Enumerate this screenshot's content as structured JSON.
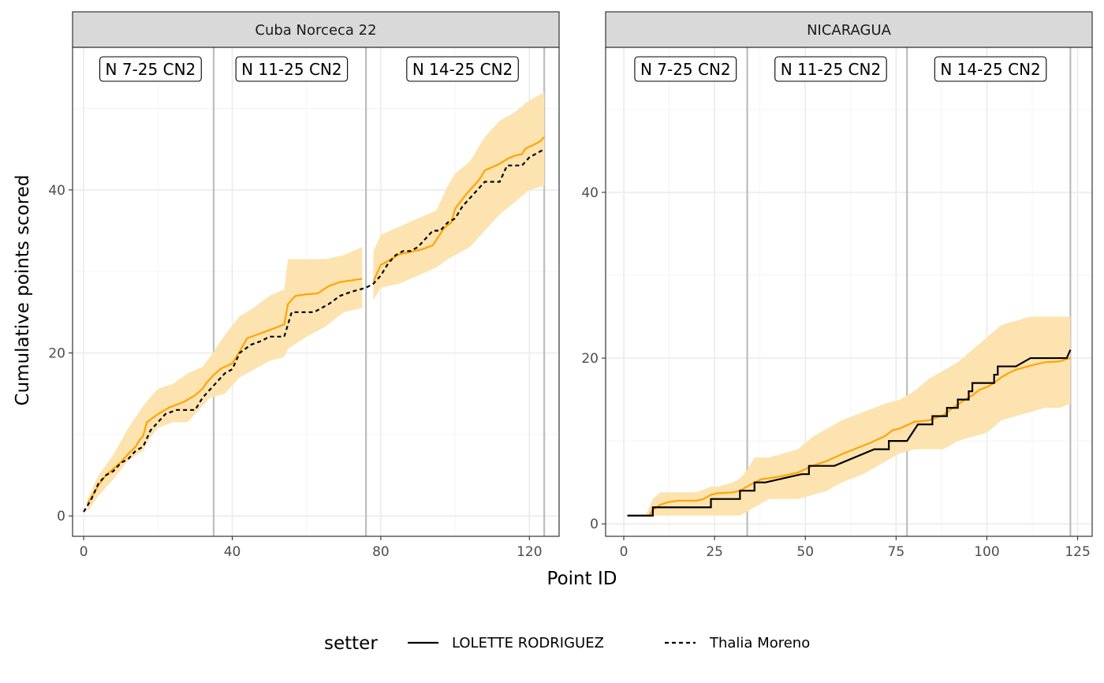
{
  "chart_data": {
    "type": "line",
    "xlabel": "Point ID",
    "ylabel": "Cumulative points scored",
    "legend": {
      "title": "setter",
      "position": "bottom",
      "entries": [
        {
          "label": "LOLETTE RODRIGUEZ",
          "linetype": "solid"
        },
        {
          "label": "Thalia Moreno",
          "linetype": "dashed"
        }
      ]
    },
    "colors": {
      "prediction": "#ffa500",
      "ribbon": "#fde3b0",
      "observed": "#000000"
    },
    "panels": [
      {
        "strip": "Cuba Norceca 22",
        "xlim": [
          -3,
          128
        ],
        "ylim": [
          -2.5,
          57.5
        ],
        "x_ticks": [
          0,
          40,
          80,
          120
        ],
        "y_ticks": [
          0,
          20,
          40
        ],
        "set_boundaries": [
          35,
          76,
          124
        ],
        "set_labels": [
          {
            "text": "N 7-25 CN2",
            "x": 18
          },
          {
            "text": "N 11-25 CN2",
            "x": 56
          },
          {
            "text": "N 14-25 CN2",
            "x": 102
          }
        ],
        "prediction": [
          {
            "x": [
              1,
              2,
              3,
              4,
              6,
              8,
              10,
              12,
              14,
              15,
              16,
              17,
              20,
              23,
              27,
              30,
              32,
              33,
              35,
              37,
              40,
              42,
              44,
              47,
              50,
              54,
              55,
              57,
              60,
              63,
              66,
              69,
              72,
              75
            ],
            "y": [
              1.5,
              2.2,
              3,
              3.8,
              5,
              5.8,
              6.6,
              7.6,
              8.5,
              9.3,
              9.8,
              11.5,
              12.5,
              13.3,
              14,
              14.8,
              15.6,
              16.3,
              17.3,
              18.1,
              18.7,
              20.2,
              21.8,
              22.3,
              22.8,
              23.5,
              26,
              27,
              27.2,
              27.3,
              28.2,
              28.7,
              28.9,
              29.1
            ]
          },
          {
            "x": [
              78,
              80,
              82,
              85,
              88,
              91,
              94,
              97,
              99,
              100,
              102,
              104,
              106,
              107,
              108,
              110,
              112,
              114,
              116,
              118,
              119,
              121,
              123,
              124
            ],
            "y": [
              28.8,
              30.8,
              31.3,
              32.1,
              32.4,
              32.7,
              33.2,
              35.3,
              36,
              37.7,
              38.9,
              40,
              41,
              41.6,
              42.4,
              42.8,
              43.2,
              43.8,
              44.2,
              44.4,
              45.1,
              45.5,
              46,
              46.5
            ]
          }
        ],
        "ribbon": [
          {
            "x": [
              1,
              4,
              8,
              12,
              16,
              18,
              20,
              24,
              28,
              32,
              34,
              38,
              42,
              46,
              50,
              54,
              55,
              60,
              65,
              70,
              75
            ],
            "upper": [
              2,
              5,
              7.5,
              10.8,
              13.5,
              14.6,
              15.6,
              16.2,
              17.5,
              18.3,
              19.5,
              22.2,
              24.5,
              25.6,
              27,
              27.8,
              31.5,
              31.5,
              31.5,
              32,
              33
            ],
            "lower": [
              0.5,
              2.5,
              4.5,
              6.8,
              8,
              9.6,
              10.8,
              11.5,
              11.5,
              13.5,
              14.5,
              15,
              17,
              18,
              19,
              19.5,
              20.5,
              22,
              23.2,
              25,
              25.5
            ]
          },
          {
            "x": [
              78,
              80,
              85,
              90,
              95,
              98,
              100,
              104,
              106,
              108,
              112,
              116,
              120,
              124
            ],
            "upper": [
              32.5,
              34.5,
              35.5,
              36.5,
              37.5,
              40.5,
              42,
              43.5,
              45,
              46.5,
              48.5,
              49.5,
              51,
              52
            ],
            "lower": [
              26.5,
              28,
              28.5,
              29.5,
              30.5,
              31.5,
              32,
              33,
              34,
              35,
              37,
              38.5,
              40,
              40.5
            ]
          }
        ],
        "observed": {
          "setter": "Thalia Moreno",
          "x": [
            0,
            2,
            4,
            6,
            8,
            10,
            12,
            14,
            16,
            18,
            20,
            22,
            25,
            27,
            30,
            32,
            34,
            36,
            38,
            40,
            42,
            45,
            48,
            50,
            54,
            55,
            56,
            62,
            66,
            69,
            72,
            76,
            78,
            80,
            82,
            84,
            86,
            88,
            90,
            92,
            94,
            96,
            98,
            100,
            102,
            104,
            106,
            108,
            110,
            112,
            114,
            116,
            118,
            120,
            122,
            124
          ],
          "y": [
            0.5,
            2,
            4,
            5,
            5.5,
            6.5,
            7,
            8,
            8.5,
            10.5,
            11.5,
            12.5,
            13,
            13,
            13,
            14.5,
            15.5,
            16.5,
            17.5,
            18,
            20,
            21,
            21.5,
            22,
            22,
            23.5,
            25,
            25,
            26,
            27,
            27.5,
            28,
            28.5,
            29.5,
            31,
            32,
            32.5,
            32.5,
            33,
            34,
            35,
            35,
            36,
            36.5,
            38,
            39,
            40,
            41,
            41,
            41,
            43,
            43,
            43,
            44,
            44.5,
            45
          ]
        }
      },
      {
        "strip": "NICARAGUA",
        "xlim": [
          -5,
          129
        ],
        "ylim": [
          -1.5,
          57.5
        ],
        "x_ticks": [
          0,
          25,
          50,
          75,
          100,
          125
        ],
        "y_ticks": [
          0,
          20,
          40
        ],
        "set_boundaries": [
          34,
          78,
          123
        ],
        "set_labels": [
          {
            "text": "N 7-25 CN2",
            "x": 17
          },
          {
            "text": "N 11-25 CN2",
            "x": 57
          },
          {
            "text": "N 14-25 CN2",
            "x": 101
          }
        ],
        "prediction": [
          {
            "x": [
              1,
              7,
              8,
              10,
              12,
              15,
              20,
              22,
              24,
              26,
              30,
              32,
              34,
              36,
              38,
              40,
              44,
              48,
              52,
              56,
              60,
              64,
              68,
              72,
              74,
              76,
              77,
              78,
              80,
              82,
              84,
              86,
              88,
              90,
              92,
              94,
              96,
              98,
              100,
              102,
              104,
              106,
              108,
              112,
              116,
              120,
              122,
              123
            ],
            "y": [
              1,
              1,
              1.7,
              2.3,
              2.6,
              2.8,
              2.8,
              3,
              3.5,
              3.7,
              3.8,
              4,
              4.5,
              5,
              5.4,
              5.5,
              5.8,
              6.2,
              7,
              7.6,
              8.4,
              9.1,
              9.8,
              10.6,
              11.3,
              11.5,
              11.7,
              11.9,
              12.3,
              12.4,
              12.5,
              12.8,
              13.1,
              13.8,
              14.4,
              15,
              15.5,
              16.2,
              16.5,
              17,
              17.7,
              18.2,
              18.6,
              19.1,
              19.5,
              19.6,
              19.9,
              20
            ]
          }
        ],
        "ribbon": [
          {
            "x": [
              1,
              6,
              8,
              10,
              15,
              20,
              24,
              26,
              30,
              32,
              34,
              36,
              40,
              44,
              48,
              52,
              56,
              60,
              66,
              72,
              76,
              80,
              84,
              88,
              92,
              96,
              100,
              104,
              108,
              112,
              116,
              120,
              123
            ],
            "upper": [
              1,
              1,
              3,
              3.8,
              3.8,
              3.8,
              4.5,
              4.5,
              5,
              5.5,
              6.5,
              8,
              8,
              8.5,
              9,
              10.5,
              11.5,
              12.5,
              13.5,
              14.5,
              15,
              16,
              17.5,
              18.5,
              19.5,
              21,
              22.5,
              24,
              24.5,
              25,
              25,
              25,
              25
            ],
            "lower": [
              1,
              1,
              1,
              1,
              1,
              1,
              1,
              1,
              1,
              1,
              1.5,
              2,
              3,
              3,
              3,
              3.5,
              4,
              5,
              6,
              7.5,
              8.5,
              9,
              9,
              9,
              10,
              10.5,
              11,
              12.5,
              13,
              13.5,
              14,
              14,
              14.5
            ]
          }
        ],
        "observed": {
          "setter": "LOLETTE RODRIGUEZ",
          "x": [
            1,
            8,
            8,
            24,
            24,
            32,
            32,
            34,
            34,
            36,
            36,
            39,
            49,
            51,
            51,
            58,
            58,
            69,
            69,
            73,
            73,
            75,
            75,
            78,
            78,
            81,
            81,
            85,
            85,
            87,
            87,
            89,
            89,
            92,
            92,
            94,
            94,
            95,
            95,
            96,
            96,
            102,
            102,
            103,
            103,
            108,
            108,
            112,
            112,
            122,
            123
          ],
          "y": [
            1,
            1,
            2,
            2,
            3,
            3,
            4,
            4,
            4,
            4,
            5,
            5,
            6,
            6,
            7,
            7,
            7,
            9,
            9,
            9,
            10,
            10,
            10,
            10,
            10,
            12,
            12,
            12,
            13,
            13,
            13,
            13,
            14,
            14,
            15,
            15,
            15,
            15,
            16,
            16,
            17,
            17,
            18,
            18,
            19,
            19,
            19,
            20,
            20,
            20,
            21
          ]
        }
      }
    ]
  }
}
